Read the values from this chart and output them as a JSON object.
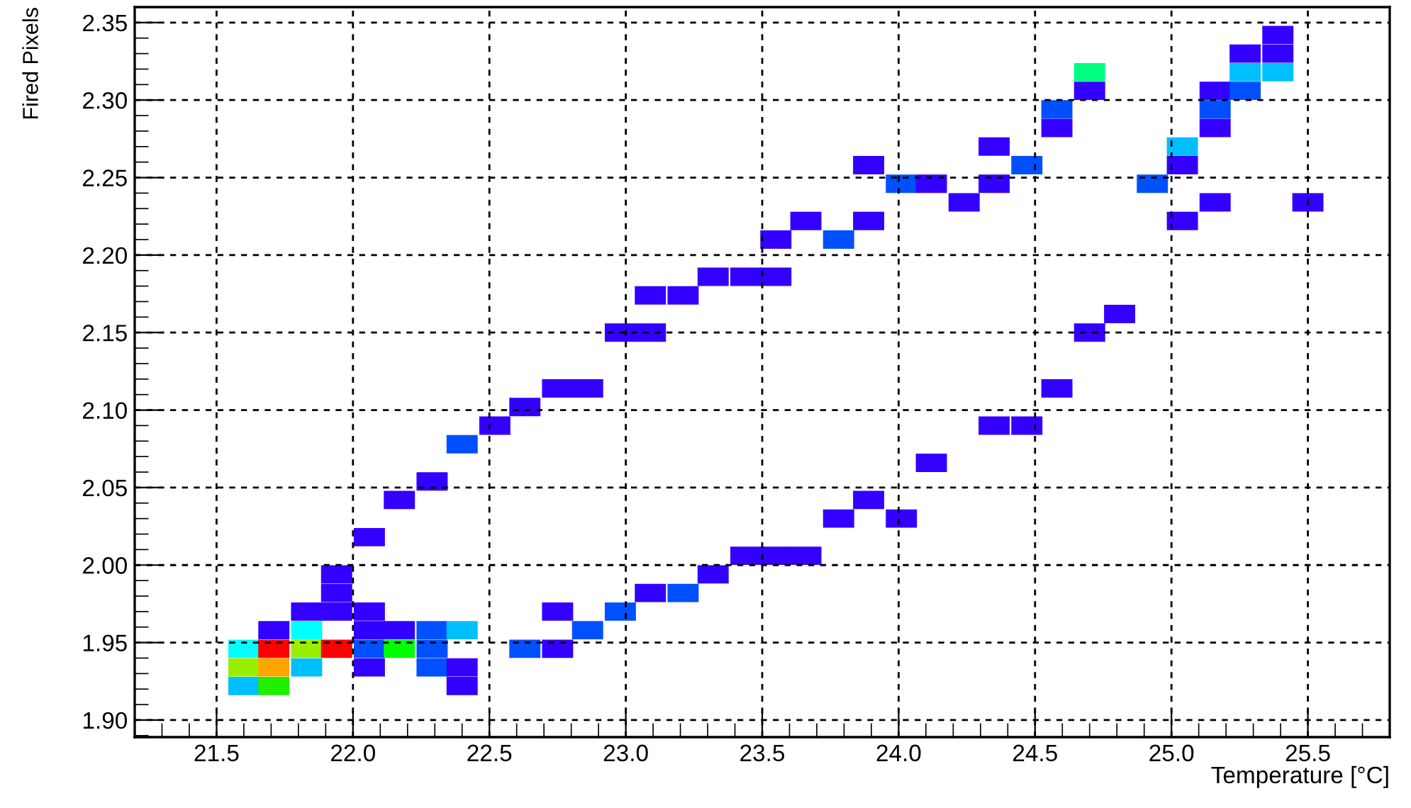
{
  "chart_data": {
    "type": "scatter",
    "xlabel": "Temperature [°C]",
    "ylabel": "Fired Pixels",
    "xlim": [
      21.2,
      25.8
    ],
    "ylim": [
      1.889,
      2.36
    ],
    "xticks": [
      {
        "value": 21.5,
        "label": "21.5"
      },
      {
        "value": 22.0,
        "label": "22.0"
      },
      {
        "value": 22.5,
        "label": "22.5"
      },
      {
        "value": 23.0,
        "label": "23.0"
      },
      {
        "value": 23.5,
        "label": "23.5"
      },
      {
        "value": 24.0,
        "label": "24.0"
      },
      {
        "value": 24.5,
        "label": "24.5"
      },
      {
        "value": 25.0,
        "label": "25.0"
      },
      {
        "value": 25.5,
        "label": "25.5"
      }
    ],
    "yticks": [
      {
        "value": 1.9,
        "label": "1.90"
      },
      {
        "value": 1.95,
        "label": "1.95"
      },
      {
        "value": 2.0,
        "label": "2.00"
      },
      {
        "value": 2.05,
        "label": "2.05"
      },
      {
        "value": 2.1,
        "label": "2.10"
      },
      {
        "value": 2.15,
        "label": "2.15"
      },
      {
        "value": 2.2,
        "label": "2.20"
      },
      {
        "value": 2.25,
        "label": "2.25"
      },
      {
        "value": 2.3,
        "label": "2.30"
      },
      {
        "value": 2.35,
        "label": "2.35"
      }
    ],
    "grid": true,
    "marker": "square",
    "x": [
      21.6,
      21.71,
      22.4,
      21.6,
      21.71,
      21.83,
      22.06,
      22.29,
      22.4,
      21.6,
      21.71,
      21.83,
      21.94,
      22.06,
      22.17,
      22.29,
      22.63,
      22.75,
      21.71,
      21.83,
      22.06,
      22.17,
      22.29,
      22.4,
      22.86,
      21.83,
      21.94,
      22.06,
      22.75,
      22.98,
      21.94,
      23.09,
      23.21,
      21.94,
      23.32,
      23.44,
      23.55,
      23.66,
      22.06,
      23.78,
      24.01,
      22.17,
      23.89,
      22.29,
      24.12,
      22.4,
      22.52,
      24.35,
      24.47,
      22.63,
      22.75,
      22.86,
      24.58,
      22.98,
      23.09,
      24.7,
      24.81,
      23.09,
      23.21,
      23.32,
      23.44,
      23.55,
      23.55,
      23.78,
      23.66,
      23.89,
      25.04,
      24.24,
      25.16,
      25.5,
      24.01,
      24.12,
      24.35,
      24.93,
      23.89,
      24.47,
      25.04,
      24.35,
      25.04,
      24.58,
      25.16,
      24.58,
      25.16,
      24.7,
      25.16,
      25.27,
      24.7,
      25.27,
      25.39,
      25.27,
      25.39,
      25.39
    ],
    "values": [
      1.922,
      1.922,
      1.922,
      1.934,
      1.934,
      1.934,
      1.934,
      1.934,
      1.934,
      1.946,
      1.946,
      1.946,
      1.946,
      1.946,
      1.946,
      1.946,
      1.946,
      1.946,
      1.958,
      1.958,
      1.958,
      1.958,
      1.958,
      1.958,
      1.958,
      1.97,
      1.97,
      1.97,
      1.97,
      1.97,
      1.982,
      1.982,
      1.982,
      1.994,
      1.994,
      2.006,
      2.006,
      2.006,
      2.018,
      2.03,
      2.03,
      2.042,
      2.042,
      2.054,
      2.066,
      2.078,
      2.09,
      2.09,
      2.09,
      2.102,
      2.114,
      2.114,
      2.114,
      2.15,
      2.15,
      2.15,
      2.162,
      2.174,
      2.174,
      2.186,
      2.186,
      2.186,
      2.21,
      2.21,
      2.222,
      2.222,
      2.222,
      2.234,
      2.234,
      2.234,
      2.246,
      2.246,
      2.246,
      2.246,
      2.258,
      2.258,
      2.258,
      2.27,
      2.27,
      2.282,
      2.282,
      2.294,
      2.294,
      2.306,
      2.306,
      2.306,
      2.318,
      2.318,
      2.318,
      2.33,
      2.33,
      2.342
    ],
    "colors": [
      "#00bfff",
      "#22ee00",
      "#3300ff",
      "#99ee00",
      "#ffa500",
      "#00bfff",
      "#3300ff",
      "#0050ff",
      "#3300ff",
      "#00ffff",
      "#ff0000",
      "#99ee00",
      "#ff0000",
      "#0050ff",
      "#00ff00",
      "#0050ff",
      "#0050ff",
      "#3300ff",
      "#3300ff",
      "#00ffff",
      "#3300ff",
      "#3300ff",
      "#0050ff",
      "#00bfff",
      "#0050ff",
      "#3300ff",
      "#3300ff",
      "#3300ff",
      "#3300ff",
      "#0050ff",
      "#3300ff",
      "#3300ff",
      "#0050ff",
      "#3300ff",
      "#3300ff",
      "#3300ff",
      "#3300ff",
      "#3300ff",
      "#3300ff",
      "#3300ff",
      "#3300ff",
      "#3300ff",
      "#3300ff",
      "#3300ff",
      "#3300ff",
      "#0050ff",
      "#3300ff",
      "#3300ff",
      "#3300ff",
      "#3300ff",
      "#3300ff",
      "#3300ff",
      "#3300ff",
      "#3300ff",
      "#3300ff",
      "#3300ff",
      "#3300ff",
      "#3300ff",
      "#3300ff",
      "#3300ff",
      "#3300ff",
      "#3300ff",
      "#3300ff",
      "#0050ff",
      "#3300ff",
      "#3300ff",
      "#3300ff",
      "#3300ff",
      "#3300ff",
      "#3300ff",
      "#0050ff",
      "#3300ff",
      "#3300ff",
      "#0050ff",
      "#3300ff",
      "#0050ff",
      "#3300ff",
      "#3300ff",
      "#00bfff",
      "#3300ff",
      "#3300ff",
      "#0050ff",
      "#0050ff",
      "#3300ff",
      "#3300ff",
      "#0050ff",
      "#00ff80",
      "#00bfff",
      "#00bfff",
      "#3300ff",
      "#3300ff",
      "#3300ff"
    ]
  }
}
